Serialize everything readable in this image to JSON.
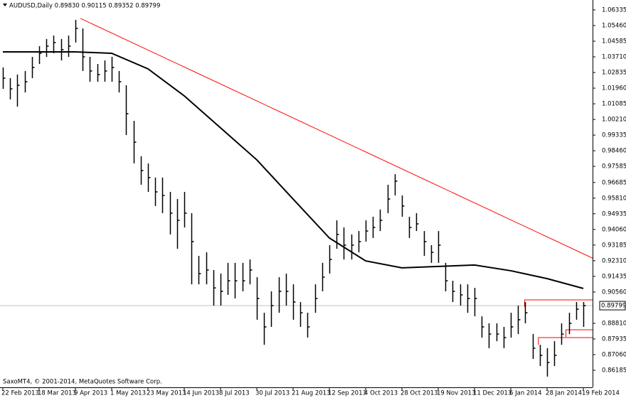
{
  "chart_data": {
    "type": "ohlc",
    "title": "AUDUSD,Daily  0.89830 0.90115 0.89352 0.89799",
    "copyright": "SaxoMT4, © 2001-2014, MetaQuotes Software Corp.",
    "categories": [
      "22 Feb 2013",
      null,
      null,
      null,
      null,
      "18 Mar 2013",
      null,
      null,
      null,
      null,
      "9 Apr 2013",
      null,
      null,
      null,
      null,
      "1 May 2013",
      null,
      null,
      null,
      null,
      "23 May 2013",
      null,
      null,
      null,
      null,
      "14 Jun 2013",
      null,
      null,
      null,
      null,
      "8 Jul 2013",
      null,
      null,
      null,
      null,
      "30 Jul 2013",
      null,
      null,
      null,
      null,
      "21 Aug 2013",
      null,
      null,
      null,
      null,
      "12 Sep 2013",
      null,
      null,
      null,
      null,
      "4 Oct 2013",
      null,
      null,
      null,
      null,
      "28 Oct 2013",
      null,
      null,
      null,
      null,
      "19 Nov 2013",
      null,
      null,
      null,
      null,
      "11 Dec 2013",
      null,
      null,
      null,
      null,
      "6 Jan 2014",
      null,
      null,
      null,
      null,
      "28 Jan 2014",
      null,
      null,
      null,
      null,
      "19 Feb 2014"
    ],
    "high": [
      1.0312,
      1.0252,
      1.0272,
      1.0292,
      1.0371,
      1.0431,
      1.0471,
      1.049,
      1.0471,
      1.049,
      1.0578,
      1.053,
      1.0371,
      1.0331,
      1.0351,
      1.0371,
      1.0292,
      1.0212,
      1.0013,
      0.9815,
      0.9775,
      0.9696,
      0.9696,
      0.9616,
      0.9576,
      0.9616,
      0.9497,
      0.9258,
      0.9278,
      0.9179,
      0.9159,
      0.9219,
      0.9219,
      0.9219,
      0.9238,
      0.9139,
      0.894,
      0.906,
      0.9139,
      0.9159,
      0.9099,
      0.9,
      0.894,
      0.9099,
      0.9219,
      0.9318,
      0.9457,
      0.9417,
      0.9378,
      0.9397,
      0.9457,
      0.9477,
      0.9517,
      0.9656,
      0.9715,
      0.9596,
      0.9477,
      0.9497,
      0.9397,
      0.9318,
      0.9397,
      0.9219,
      0.9119,
      0.9099,
      0.9099,
      0.9079,
      0.892,
      0.8881,
      0.8881,
      0.8861,
      0.894,
      0.898,
      0.9,
      0.8821,
      0.8761,
      0.8742,
      0.8781,
      0.8881,
      0.894,
      0.9,
      0.9
    ],
    "low": [
      1.0192,
      1.0133,
      1.0093,
      1.0172,
      1.0252,
      1.0331,
      1.0371,
      1.0391,
      1.0351,
      1.0371,
      1.0451,
      1.0292,
      1.0232,
      1.0232,
      1.0232,
      1.0232,
      1.0172,
      0.9934,
      0.9775,
      0.9656,
      0.9616,
      0.9537,
      0.9497,
      0.9378,
      0.9298,
      0.9417,
      0.9099,
      0.9099,
      0.9099,
      0.898,
      0.898,
      0.904,
      0.902,
      0.906,
      0.9099,
      0.8901,
      0.8761,
      0.8861,
      0.894,
      0.898,
      0.8901,
      0.8861,
      0.8801,
      0.894,
      0.906,
      0.9159,
      0.9298,
      0.9238,
      0.9238,
      0.9278,
      0.9338,
      0.9358,
      0.9397,
      0.9497,
      0.9596,
      0.9477,
      0.9358,
      0.9397,
      0.9258,
      0.9219,
      0.9219,
      0.906,
      0.9,
      0.898,
      0.894,
      0.892,
      0.8801,
      0.8742,
      0.8781,
      0.8742,
      0.8801,
      0.8821,
      0.8881,
      0.8682,
      0.8642,
      0.8583,
      0.8642,
      0.8761,
      0.8821,
      0.8901,
      0.8861
    ],
    "close": [
      1.0252,
      1.0192,
      1.0212,
      1.0232,
      1.0312,
      1.0391,
      1.0431,
      1.0451,
      1.0411,
      1.0431,
      1.053,
      1.0371,
      1.0292,
      1.0272,
      1.0292,
      1.0312,
      1.0232,
      1.0053,
      0.9894,
      0.9735,
      0.9696,
      0.9616,
      0.9596,
      0.9497,
      0.9457,
      0.9497,
      0.9338,
      0.9159,
      0.9179,
      0.9079,
      0.906,
      0.9119,
      0.9119,
      0.9119,
      0.9179,
      0.902,
      0.8861,
      0.898,
      0.906,
      0.906,
      0.9,
      0.894,
      0.8861,
      0.902,
      0.9139,
      0.9238,
      0.9378,
      0.9318,
      0.9318,
      0.9338,
      0.9397,
      0.9417,
      0.9457,
      0.9576,
      0.9676,
      0.9537,
      0.9417,
      0.9437,
      0.9338,
      0.9278,
      0.9318,
      0.9119,
      0.906,
      0.904,
      0.902,
      0.902,
      0.8861,
      0.8821,
      0.8821,
      0.8801,
      0.8861,
      0.8901,
      0.894,
      0.8742,
      0.8702,
      0.8662,
      0.8702,
      0.8821,
      0.8881,
      0.896,
      0.89799
    ],
    "color": "#000000",
    "moving_average": {
      "color": "#000000",
      "x": [
        0,
        5,
        10,
        15,
        20,
        25,
        30,
        35,
        40,
        45,
        50,
        55,
        60,
        65,
        70,
        75,
        80
      ],
      "values": [
        1.0399,
        1.0399,
        1.0399,
        1.0391,
        1.0304,
        1.0153,
        0.9974,
        0.9795,
        0.9576,
        0.9358,
        0.923,
        0.9191,
        0.9199,
        0.9207,
        0.9175,
        0.9131,
        0.9076
      ]
    },
    "trendline": {
      "color": "#ff0000",
      "x": [
        10.7,
        85.2
      ],
      "y": [
        1.0586,
        0.9171
      ]
    },
    "levels": {
      "color": "#ff0000",
      "values": [
        0.9012,
        0.8845,
        0.8801
      ],
      "from_x": [
        71.9,
        77.6,
        73.8
      ]
    },
    "last_price": 0.89799,
    "xlim": [
      -0.39,
      81.27
    ],
    "ylim": [
      0.8523,
      1.0677
    ],
    "yticks": [
      1.06335,
      {
        "value": 1.0546,
        "label": "1.05460"
      },
      1.04585,
      {
        "value": 1.0371,
        "label": "1.03710"
      },
      1.02835,
      {
        "value": 1.0196,
        "label": "1.01960"
      },
      1.01085,
      {
        "value": 1.0021,
        "label": "1.00210"
      },
      0.99335,
      {
        "value": 0.9846,
        "label": "0.98460"
      },
      0.97585,
      0.96685,
      {
        "value": 0.9581,
        "label": "0.95810"
      },
      0.94935,
      {
        "value": 0.9406,
        "label": "0.94060"
      },
      0.93185,
      {
        "value": 0.9231,
        "label": "0.92310"
      },
      0.91435,
      {
        "value": 0.9056,
        "label": "0.90560"
      },
      {
        "value": 0.8881,
        "label": "0.88810"
      },
      0.87935,
      {
        "value": 0.8706,
        "label": "0.87060"
      },
      0.86185
    ]
  }
}
